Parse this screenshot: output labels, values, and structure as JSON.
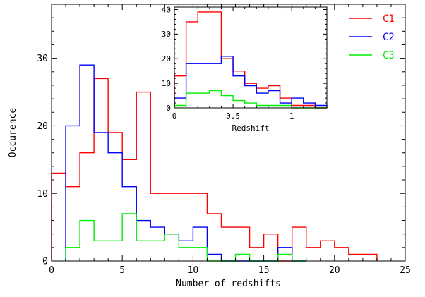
{
  "chart_data": [
    {
      "id": "main",
      "type": "histogram-step",
      "xlabel": "Number of redshifts",
      "ylabel": "Occurence",
      "xlim": [
        0,
        25
      ],
      "ylim": [
        0,
        38
      ],
      "xticks": [
        0,
        5,
        10,
        15,
        20,
        25
      ],
      "yticks": [
        0,
        10,
        20,
        30
      ],
      "series": [
        {
          "name": "C1",
          "color": "#ff0000",
          "bin_edges": [
            0,
            1,
            2,
            3,
            4,
            5,
            6,
            7,
            8,
            9,
            10,
            11,
            12,
            13,
            14,
            15,
            16,
            17,
            18,
            19,
            20,
            21,
            22,
            23
          ],
          "counts": [
            13,
            11,
            16,
            27,
            19,
            15,
            25,
            10,
            10,
            10,
            10,
            7,
            5,
            5,
            2,
            4,
            0,
            5,
            2,
            3,
            2,
            1,
            1
          ]
        },
        {
          "name": "C2",
          "color": "#0000ff",
          "bin_edges": [
            1,
            2,
            3,
            4,
            5,
            6,
            7,
            8,
            9,
            10,
            11,
            12,
            13,
            14,
            15,
            16,
            17,
            18
          ],
          "counts": [
            20,
            29,
            19,
            16,
            11,
            6,
            5,
            4,
            3,
            5,
            1,
            0,
            0,
            0,
            0,
            2,
            0
          ]
        },
        {
          "name": "C3",
          "color": "#00ee00",
          "bin_edges": [
            1,
            2,
            3,
            4,
            5,
            6,
            7,
            8,
            9,
            10,
            11,
            12,
            13,
            14,
            15,
            16,
            17,
            18
          ],
          "counts": [
            2,
            6,
            3,
            3,
            7,
            3,
            3,
            4,
            2,
            2,
            0,
            0,
            1,
            0,
            0,
            1,
            0
          ]
        }
      ],
      "legend": {
        "position": "top-right",
        "entries": [
          "C1",
          "C2",
          "C3"
        ]
      }
    },
    {
      "id": "inset",
      "type": "histogram-step",
      "xlabel": "Redshift",
      "ylabel": "",
      "xlim": [
        0,
        1.3
      ],
      "ylim": [
        0,
        41
      ],
      "xticks": [
        0,
        0.5,
        1
      ],
      "xtick_labels": [
        "0",
        "0.5",
        "1"
      ],
      "yticks": [
        0,
        10,
        20,
        30,
        40
      ],
      "series": [
        {
          "name": "C1",
          "color": "#ff0000",
          "bin_edges": [
            0,
            0.1,
            0.2,
            0.3,
            0.4,
            0.5,
            0.6,
            0.7,
            0.8,
            0.9,
            1.0,
            1.1,
            1.2,
            1.3
          ],
          "counts": [
            13,
            35,
            39,
            39,
            20,
            15,
            10,
            8,
            9,
            4,
            1,
            1,
            0
          ]
        },
        {
          "name": "C2",
          "color": "#0000ff",
          "bin_edges": [
            0,
            0.1,
            0.2,
            0.3,
            0.4,
            0.5,
            0.6,
            0.7,
            0.8,
            0.9,
            1.0,
            1.1,
            1.2,
            1.3
          ],
          "counts": [
            4,
            18,
            18,
            18,
            21,
            13,
            9,
            6,
            7,
            2,
            4,
            2,
            1
          ]
        },
        {
          "name": "C3",
          "color": "#00ee00",
          "bin_edges": [
            0,
            0.1,
            0.2,
            0.3,
            0.4,
            0.5,
            0.6,
            0.7,
            0.8,
            0.9,
            1.0,
            1.1,
            1.2,
            1.3
          ],
          "counts": [
            1,
            6,
            6,
            7,
            5,
            3,
            2,
            1,
            1,
            1,
            0,
            0,
            0
          ]
        }
      ]
    }
  ]
}
